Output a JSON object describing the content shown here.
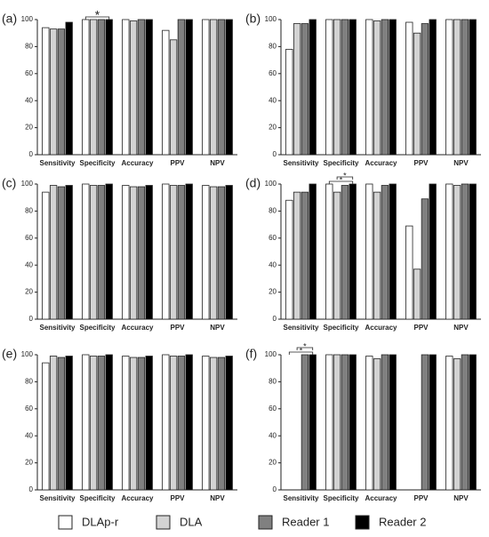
{
  "legend": [
    {
      "name": "DLAp-r",
      "color": "#ffffff"
    },
    {
      "name": "DLA",
      "color": "#d3d3d3"
    },
    {
      "name": "Reader 1",
      "color": "#808080"
    },
    {
      "name": "Reader 2",
      "color": "#000000"
    }
  ],
  "chart_data": [
    {
      "type": "bar",
      "panel": "(a)",
      "categories": [
        "Sensitivity",
        "Specificity",
        "Accuracy",
        "PPV",
        "NPV"
      ],
      "series": [
        {
          "values": [
            94,
            100,
            100,
            92,
            100
          ]
        },
        {
          "values": [
            93,
            100,
            99,
            85,
            100
          ]
        },
        {
          "values": [
            93,
            100,
            100,
            100,
            100
          ]
        },
        {
          "values": [
            98,
            100,
            100,
            100,
            100
          ]
        }
      ],
      "ylim": [
        0,
        100
      ],
      "yticks": [
        0,
        20,
        40,
        60,
        80,
        100
      ],
      "annotations": [
        "*"
      ]
    },
    {
      "type": "bar",
      "panel": "(b)",
      "categories": [
        "Sensitivity",
        "Specificity",
        "Accuracy",
        "PPV",
        "NPV"
      ],
      "series": [
        {
          "values": [
            78,
            100,
            100,
            98,
            100
          ]
        },
        {
          "values": [
            97,
            100,
            99,
            90,
            100
          ]
        },
        {
          "values": [
            97,
            100,
            100,
            97,
            100
          ]
        },
        {
          "values": [
            100,
            100,
            100,
            100,
            100
          ]
        }
      ],
      "ylim": [
        0,
        100
      ],
      "yticks": [
        0,
        20,
        40,
        60,
        80,
        100
      ],
      "annotations": []
    },
    {
      "type": "bar",
      "panel": "(c)",
      "categories": [
        "Sensitivity",
        "Specificity",
        "Accuracy",
        "PPV",
        "NPV"
      ],
      "series": [
        {
          "values": [
            94,
            100,
            99,
            100,
            99
          ]
        },
        {
          "values": [
            99,
            99,
            98,
            99,
            98
          ]
        },
        {
          "values": [
            98,
            99,
            98,
            99,
            98
          ]
        },
        {
          "values": [
            99,
            100,
            99,
            100,
            99
          ]
        }
      ],
      "ylim": [
        0,
        100
      ],
      "yticks": [
        0,
        20,
        40,
        60,
        80,
        100
      ],
      "annotations": []
    },
    {
      "type": "bar",
      "panel": "(d)",
      "categories": [
        "Sensitivity",
        "Specificity",
        "Accuracy",
        "PPV",
        "NPV"
      ],
      "series": [
        {
          "values": [
            88,
            100,
            100,
            69,
            100
          ]
        },
        {
          "values": [
            94,
            94,
            94,
            37,
            99
          ]
        },
        {
          "values": [
            94,
            99,
            99,
            89,
            100
          ]
        },
        {
          "values": [
            100,
            100,
            100,
            100,
            100
          ]
        }
      ],
      "ylim": [
        0,
        100
      ],
      "yticks": [
        0,
        20,
        40,
        60,
        80,
        100
      ],
      "annotations": [
        "*",
        "*"
      ]
    },
    {
      "type": "bar",
      "panel": "(e)",
      "categories": [
        "Sensitivity",
        "Specificity",
        "Accuracy",
        "PPV",
        "NPV"
      ],
      "series": [
        {
          "values": [
            94,
            100,
            99,
            100,
            99
          ]
        },
        {
          "values": [
            99,
            99,
            98,
            99,
            98
          ]
        },
        {
          "values": [
            98,
            99,
            98,
            99,
            98
          ]
        },
        {
          "values": [
            99,
            100,
            99,
            100,
            99
          ]
        }
      ],
      "ylim": [
        0,
        100
      ],
      "yticks": [
        0,
        20,
        40,
        60,
        80,
        100
      ],
      "annotations": []
    },
    {
      "type": "bar",
      "panel": "(f)",
      "categories": [
        "Sensitivity",
        "Specificity",
        "Accuracy",
        "PPV",
        "NPV"
      ],
      "series": [
        {
          "values": [
            0,
            100,
            99,
            0,
            99
          ]
        },
        {
          "values": [
            0,
            100,
            97,
            0,
            97
          ]
        },
        {
          "values": [
            100,
            100,
            100,
            100,
            100
          ]
        },
        {
          "values": [
            100,
            100,
            100,
            100,
            100
          ]
        }
      ],
      "ylim": [
        0,
        100
      ],
      "yticks": [
        0,
        20,
        40,
        60,
        80,
        100
      ],
      "annotations": [
        "*",
        "*"
      ]
    }
  ]
}
